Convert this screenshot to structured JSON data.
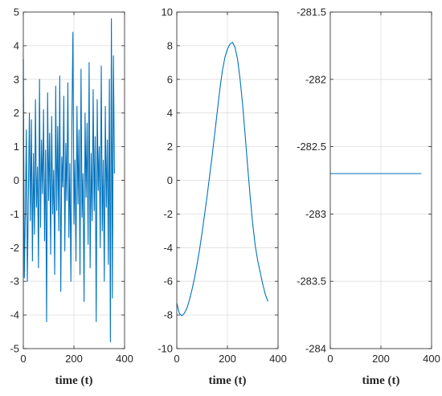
{
  "chart_data": [
    {
      "type": "line",
      "title": "",
      "xlabel": "time (t)",
      "ylabel": "",
      "xlim": [
        0,
        400
      ],
      "ylim": [
        -5,
        5
      ],
      "xticks": [
        0,
        200,
        400
      ],
      "yticks": [
        -5,
        -4,
        -3,
        -2,
        -1,
        0,
        1,
        2,
        3,
        4,
        5
      ],
      "grid": true,
      "series": [
        {
          "color": "#0072BD",
          "x": [
            0,
            4,
            8,
            12,
            16,
            20,
            24,
            28,
            32,
            36,
            40,
            44,
            48,
            52,
            56,
            60,
            64,
            68,
            72,
            76,
            80,
            84,
            88,
            92,
            96,
            100,
            104,
            108,
            112,
            116,
            120,
            124,
            128,
            132,
            136,
            140,
            144,
            148,
            152,
            156,
            160,
            164,
            168,
            172,
            176,
            180,
            184,
            188,
            192,
            196,
            200,
            204,
            208,
            212,
            216,
            220,
            224,
            228,
            232,
            236,
            240,
            244,
            248,
            252,
            256,
            260,
            264,
            268,
            272,
            276,
            280,
            284,
            288,
            292,
            296,
            300,
            304,
            308,
            312,
            316,
            320,
            324,
            328,
            332,
            336,
            340,
            344,
            348,
            352,
            356,
            360
          ],
          "y": [
            3.6,
            -2.9,
            -1.0,
            1.5,
            -3.0,
            -0.5,
            2.0,
            -1.2,
            1.8,
            -2.4,
            0.8,
            -1.6,
            2.4,
            -0.8,
            0.4,
            -2.6,
            3.0,
            -1.4,
            1.2,
            -0.4,
            2.1,
            -1.8,
            0.9,
            -4.2,
            2.6,
            -0.6,
            1.4,
            -2.2,
            1.9,
            -1.0,
            0.3,
            -2.8,
            2.8,
            -0.9,
            1.6,
            -1.5,
            3.1,
            -3.3,
            0.7,
            -0.2,
            2.5,
            -2.1,
            1.1,
            -0.6,
            2.9,
            -1.7,
            0.5,
            -3.0,
            1.8,
            4.4,
            -1.3,
            0.6,
            -2.4,
            2.2,
            -0.7,
            1.5,
            -2.8,
            3.3,
            -1.1,
            0.2,
            -3.6,
            2.0,
            -0.5,
            1.7,
            -1.9,
            3.5,
            -2.6,
            0.8,
            -1.2,
            2.7,
            -0.9,
            1.3,
            -4.2,
            2.4,
            -0.3,
            1.0,
            -2.0,
            3.4,
            -1.5,
            0.6,
            -3.0,
            2.2,
            -0.8,
            1.2,
            -2.5,
            3.0,
            -4.8,
            4.8,
            -3.5,
            3.7,
            0.2
          ]
        }
      ]
    },
    {
      "type": "line",
      "title": "",
      "xlabel": "time (t)",
      "ylabel": "",
      "xlim": [
        0,
        400
      ],
      "ylim": [
        -10,
        10
      ],
      "xticks": [
        0,
        200,
        400
      ],
      "yticks": [
        -10,
        -8,
        -6,
        -4,
        -2,
        0,
        2,
        4,
        6,
        8,
        10
      ],
      "grid": true,
      "series": [
        {
          "color": "#0072BD",
          "x": [
            0,
            10,
            20,
            30,
            40,
            50,
            60,
            70,
            80,
            90,
            100,
            110,
            120,
            130,
            140,
            150,
            160,
            170,
            180,
            190,
            200,
            210,
            220,
            230,
            240,
            250,
            260,
            270,
            280,
            290,
            300,
            310,
            320,
            330,
            340,
            350,
            360
          ],
          "y": [
            -7.3,
            -7.9,
            -8.05,
            -7.9,
            -7.6,
            -7.1,
            -6.5,
            -5.8,
            -5.0,
            -4.1,
            -3.1,
            -2.0,
            -0.9,
            0.3,
            1.5,
            2.8,
            4.1,
            5.4,
            6.5,
            7.3,
            7.8,
            8.1,
            8.2,
            7.9,
            7.2,
            6.0,
            4.5,
            2.7,
            0.8,
            -1.0,
            -2.6,
            -3.9,
            -4.8,
            -5.5,
            -6.2,
            -6.8,
            -7.2
          ]
        }
      ]
    },
    {
      "type": "line",
      "title": "",
      "xlabel": "time (t)",
      "ylabel": "",
      "xlim": [
        0,
        400
      ],
      "ylim": [
        -284,
        -281.5
      ],
      "xticks": [
        0,
        200,
        400
      ],
      "yticks": [
        -284,
        -283.5,
        -283,
        -282.5,
        -282,
        -281.5
      ],
      "grid": true,
      "series": [
        {
          "color": "#0072BD",
          "x": [
            0,
            360
          ],
          "y": [
            -282.7,
            -282.7
          ]
        }
      ]
    }
  ]
}
